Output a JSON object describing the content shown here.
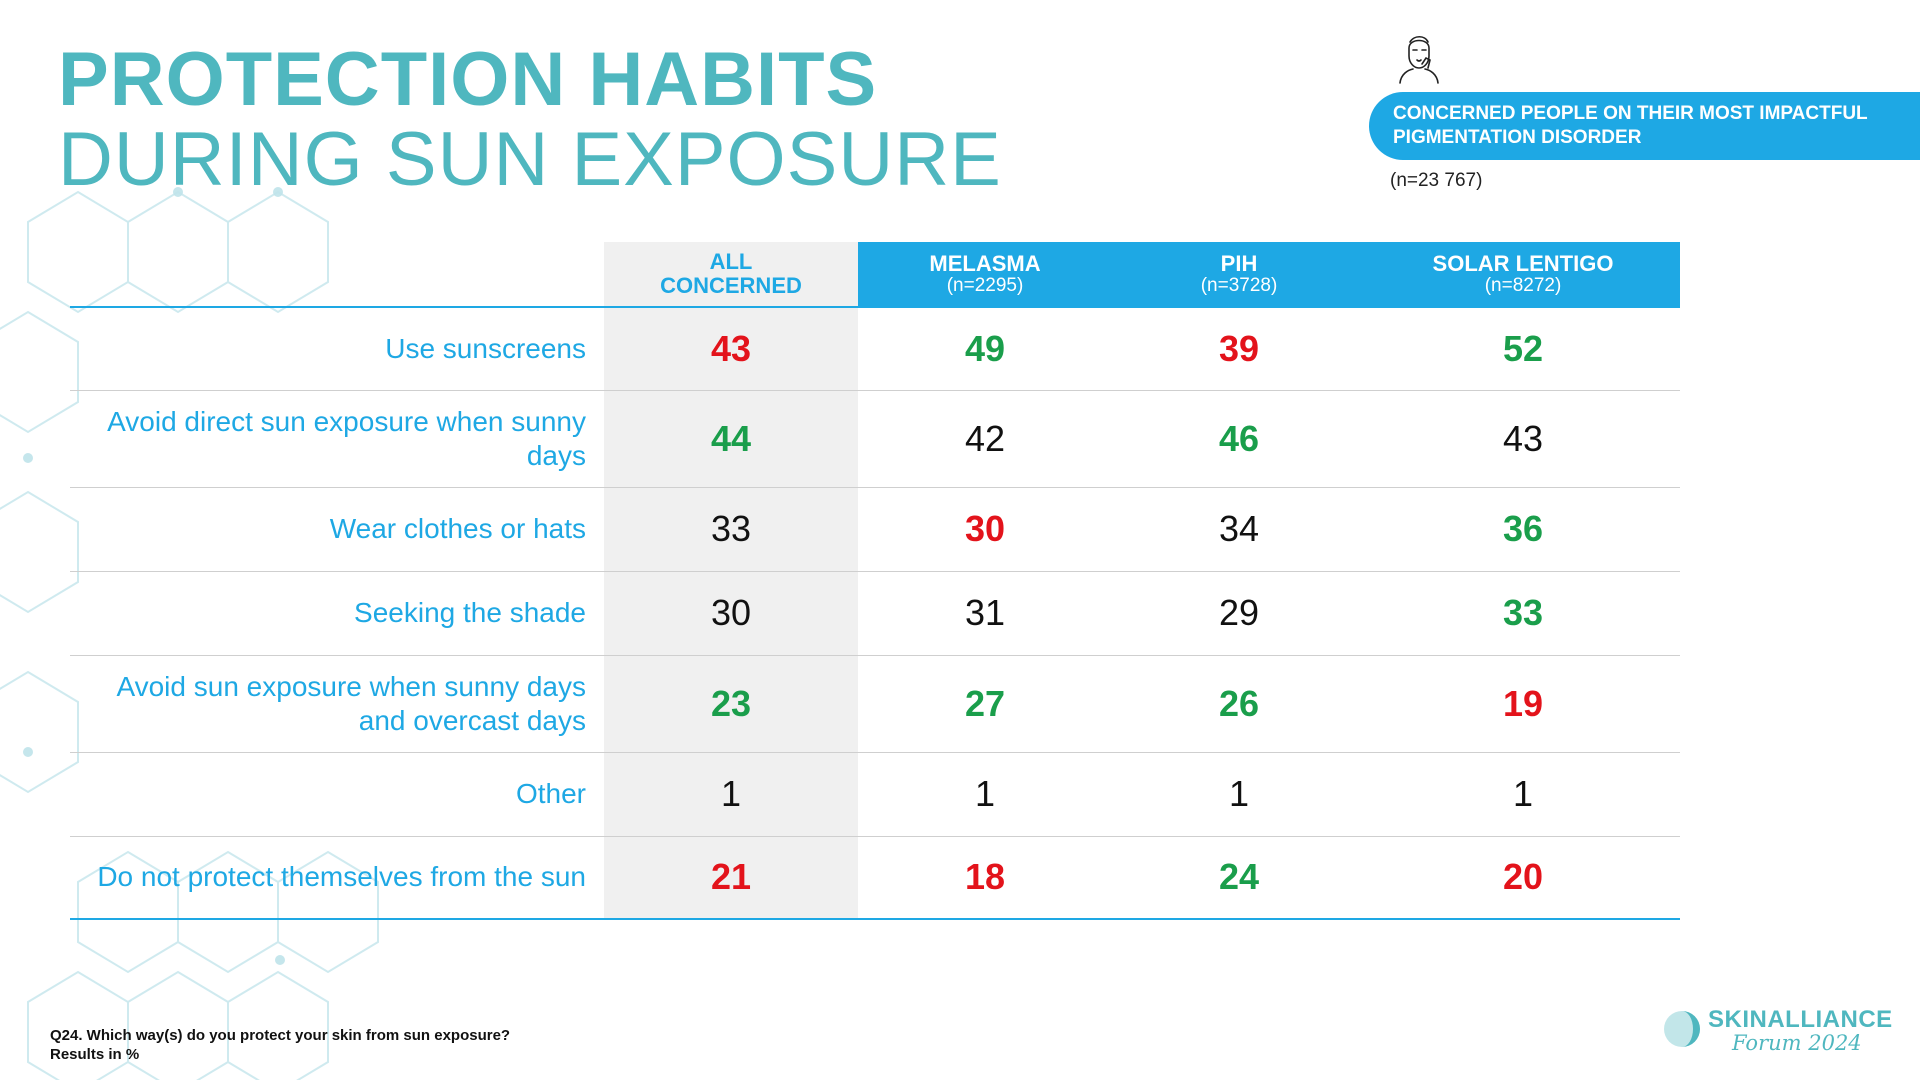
{
  "title": {
    "line1": "PROTECTION HABITS",
    "line2": "DURING SUN EXPOSURE"
  },
  "banner": {
    "text": "CONCERNED PEOPLE ON THEIR MOST IMPACTFUL PIGMENTATION DISORDER",
    "n": "(n=23 767)",
    "icon": "person-face-icon"
  },
  "table": {
    "columns": [
      {
        "name": "ALL CONCERNED",
        "n": ""
      },
      {
        "name": "MELASMA",
        "n": "(n=2295)"
      },
      {
        "name": "PIH",
        "n": "(n=3728)"
      },
      {
        "name": "SOLAR LENTIGO",
        "n": "(n=8272)"
      }
    ],
    "rows": [
      {
        "label": "Use sunscreens",
        "values": [
          "43",
          "49",
          "39",
          "52"
        ],
        "status": [
          "red",
          "green",
          "red",
          "green"
        ]
      },
      {
        "label": "Avoid direct sun exposure when sunny days",
        "values": [
          "44",
          "42",
          "46",
          "43"
        ],
        "status": [
          "green",
          "neutral",
          "green",
          "neutral"
        ]
      },
      {
        "label": "Wear clothes or hats",
        "values": [
          "33",
          "30",
          "34",
          "36"
        ],
        "status": [
          "neutral",
          "red",
          "neutral",
          "green"
        ]
      },
      {
        "label": "Seeking the shade",
        "values": [
          "30",
          "31",
          "29",
          "33"
        ],
        "status": [
          "neutral",
          "neutral",
          "neutral",
          "green"
        ]
      },
      {
        "label": "Avoid sun exposure when sunny days and overcast days",
        "values": [
          "23",
          "27",
          "26",
          "19"
        ],
        "status": [
          "green",
          "green",
          "green",
          "red"
        ]
      },
      {
        "label": "Other",
        "values": [
          "1",
          "1",
          "1",
          "1"
        ],
        "status": [
          "neutral",
          "neutral",
          "neutral",
          "neutral"
        ]
      },
      {
        "label": "Do not protect themselves from the sun",
        "values": [
          "21",
          "18",
          "24",
          "20"
        ],
        "status": [
          "red",
          "red",
          "green",
          "red"
        ]
      }
    ]
  },
  "footnote": {
    "question": "Q24. Which way(s) do you protect your skin from sun exposure?",
    "unit": "Results in %"
  },
  "logo": {
    "brand": "SKINALLIANCE",
    "sub": "Forum 2024"
  },
  "colors": {
    "accent_blue": "#1ea8e4",
    "teal": "#4fb7bf",
    "positive": "#1a9e4b",
    "negative": "#e3131b"
  }
}
